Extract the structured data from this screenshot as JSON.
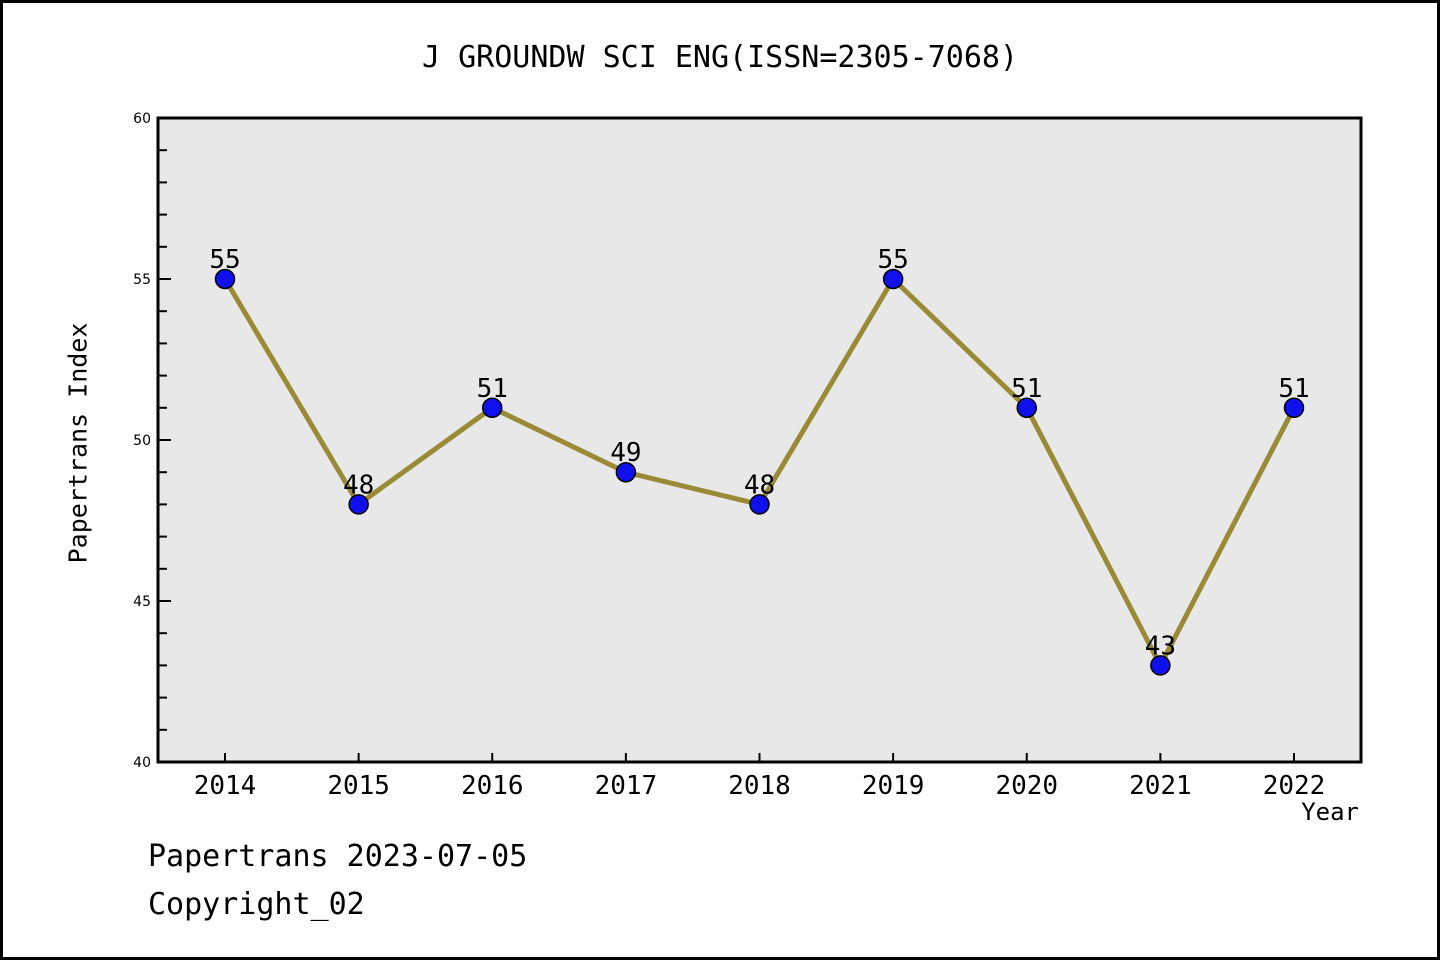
{
  "chart_data": {
    "type": "line",
    "title": "J GROUNDW SCI ENG(ISSN=2305-7068)",
    "xlabel": "Year",
    "ylabel": "Papertrans Index",
    "x": [
      2014,
      2015,
      2016,
      2017,
      2018,
      2019,
      2020,
      2021,
      2022
    ],
    "values": [
      55,
      48,
      51,
      49,
      48,
      55,
      51,
      43,
      51
    ],
    "point_labels": [
      "55",
      "48",
      "51",
      "49",
      "48",
      "55",
      "51",
      "43",
      "51"
    ],
    "ylim": [
      40,
      60
    ],
    "yticks": [
      40,
      45,
      50,
      55,
      60
    ],
    "minor_ytick_step": 1,
    "grid": false,
    "legend_position": "none",
    "colors": {
      "line": "#998A35",
      "marker_fill": "#1010EE",
      "marker_edge": "#000000",
      "plot_background": "#E8E8E8",
      "axis_frame": "#000000",
      "text": "#000000",
      "page_background": "#FFFFFF"
    }
  },
  "footer": {
    "watermark": "Papertrans 2023-07-05",
    "copyright": "Copyright_02"
  }
}
